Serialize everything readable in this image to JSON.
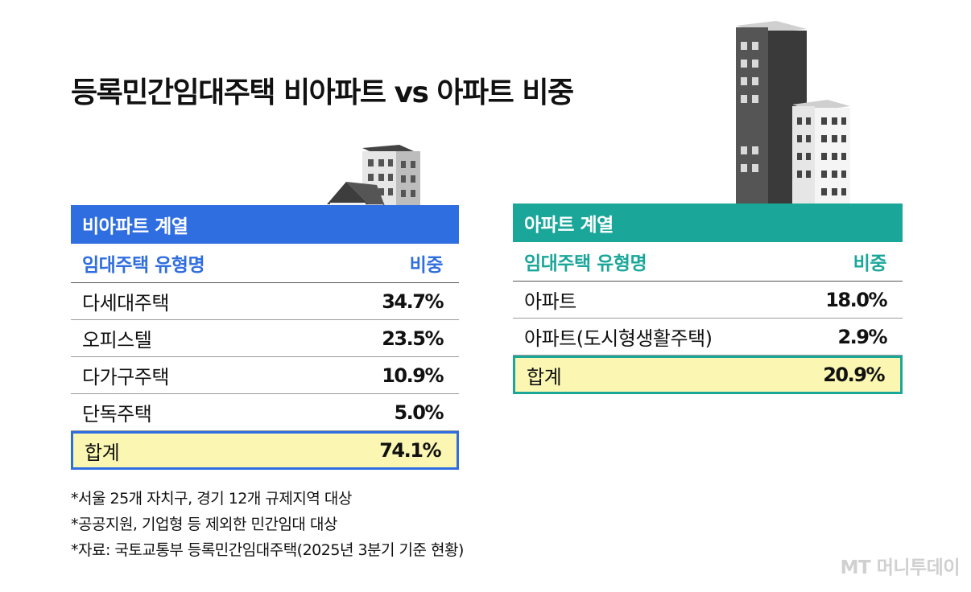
{
  "title": "등록민간임대주택 비아파트 vs 아파트 비중",
  "left_panel": {
    "header": "비아파트 계열",
    "col_name": "임대주택 유형명",
    "col_value": "비중",
    "rows": [
      {
        "name": "다세대주택",
        "value": "34.7%"
      },
      {
        "name": "오피스텔",
        "value": "23.5%"
      },
      {
        "name": "다가구주택",
        "value": "10.9%"
      },
      {
        "name": "단독주택",
        "value": "5.0%"
      }
    ],
    "total": {
      "name": "합계",
      "value": "74.1%"
    }
  },
  "right_panel": {
    "header": "아파트 계열",
    "col_name": "임대주택 유형명",
    "col_value": "비중",
    "rows": [
      {
        "name": "아파트",
        "value": "18.0%"
      },
      {
        "name": "아파트(도시형생활주택)",
        "value": "2.9%"
      }
    ],
    "total": {
      "name": "합계",
      "value": "20.9%"
    }
  },
  "notes": [
    "*서울 25개 자치구, 경기 12개 규제지역 대상",
    "*공공지원, 기업형 등 제외한 민간임대 대상",
    "*자료: 국토교통부 등록민간임대주택(2025년 3분기 기준 현황)"
  ],
  "watermark": "MT 머니투데이",
  "colors": {
    "non_apartment": "#2f6ee0",
    "apartment": "#1aa79a",
    "total_fill": "#fbf7b3"
  },
  "icons": [
    "house-and-building-icon",
    "apartment-towers-icon"
  ],
  "chart_data": [
    {
      "type": "table",
      "title": "비아파트 계열",
      "columns": [
        "임대주택 유형명",
        "비중"
      ],
      "rows": [
        [
          "다세대주택",
          "34.7%"
        ],
        [
          "오피스텔",
          "23.5%"
        ],
        [
          "다가구주택",
          "10.9%"
        ],
        [
          "단독주택",
          "5.0%"
        ],
        [
          "합계",
          "74.1%"
        ]
      ]
    },
    {
      "type": "table",
      "title": "아파트 계열",
      "columns": [
        "임대주택 유형명",
        "비중"
      ],
      "rows": [
        [
          "아파트",
          "18.0%"
        ],
        [
          "아파트(도시형생활주택)",
          "2.9%"
        ],
        [
          "합계",
          "20.9%"
        ]
      ]
    }
  ]
}
